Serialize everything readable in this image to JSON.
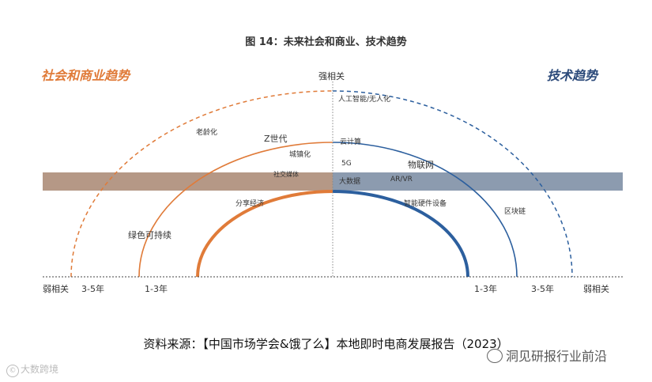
{
  "figure_title": "图 14：未来社会和商业、技术趋势",
  "left_header": "社会和商业趋势",
  "right_header": "技术趋势",
  "axis": {
    "top": "强相关",
    "left_end": "弱相关",
    "left_far": "3-5年",
    "left_near": "1-3年",
    "right_near": "1-3年",
    "right_far": "3-5年",
    "right_end": "弱相关"
  },
  "social_labels": [
    "老龄化",
    "Z世代",
    "城镇化",
    "社交媒体",
    "分享经济",
    "绿色可持续"
  ],
  "tech_labels": [
    "人工智能/无人化",
    "云计算",
    "5G",
    "物联网",
    "大数据",
    "AR/VR",
    "智能硬件设备",
    "区块链"
  ],
  "source": "资料来源：【中国市场学会&饿了么】本地即时电商发展报告（2023）",
  "watermark_left": "大数跨境",
  "watermark_right": "洞见研报行业前沿",
  "colors": {
    "social": "#e07b39",
    "tech": "#2c5f9e",
    "band_left": "#b89a88",
    "band_right": "#8e9db0"
  }
}
